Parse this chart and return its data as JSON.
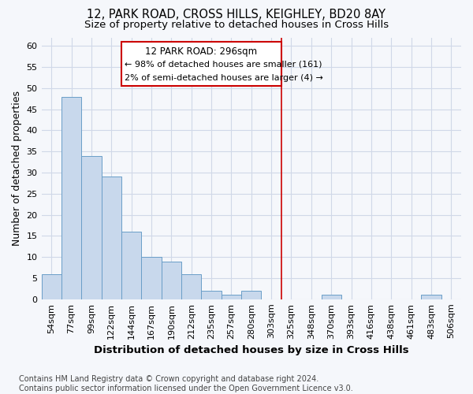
{
  "title": "12, PARK ROAD, CROSS HILLS, KEIGHLEY, BD20 8AY",
  "subtitle": "Size of property relative to detached houses in Cross Hills",
  "xlabel": "Distribution of detached houses by size in Cross Hills",
  "ylabel": "Number of detached properties",
  "footer_line1": "Contains HM Land Registry data © Crown copyright and database right 2024.",
  "footer_line2": "Contains public sector information licensed under the Open Government Licence v3.0.",
  "bar_labels": [
    "54sqm",
    "77sqm",
    "99sqm",
    "122sqm",
    "144sqm",
    "167sqm",
    "190sqm",
    "212sqm",
    "235sqm",
    "257sqm",
    "280sqm",
    "303sqm",
    "325sqm",
    "348sqm",
    "370sqm",
    "393sqm",
    "416sqm",
    "438sqm",
    "461sqm",
    "483sqm",
    "506sqm"
  ],
  "bar_values": [
    6,
    48,
    34,
    29,
    16,
    10,
    9,
    6,
    2,
    1,
    2,
    0,
    0,
    0,
    1,
    0,
    0,
    0,
    0,
    1,
    0
  ],
  "bar_color": "#c8d8ec",
  "bar_edge_color": "#6a9ec8",
  "ylim": [
    0,
    62
  ],
  "yticks": [
    0,
    5,
    10,
    15,
    20,
    25,
    30,
    35,
    40,
    45,
    50,
    55,
    60
  ],
  "vline_x": 11.5,
  "vline_color": "#cc0000",
  "annotation_title": "12 PARK ROAD: 296sqm",
  "annotation_line1": "← 98% of detached houses are smaller (161)",
  "annotation_line2": "2% of semi-detached houses are larger (4) →",
  "annotation_box_color": "#cc0000",
  "background_color": "#f5f7fb",
  "grid_color": "#d0d8e8",
  "title_fontsize": 10.5,
  "subtitle_fontsize": 9.5,
  "axis_label_fontsize": 9,
  "tick_fontsize": 8,
  "footer_fontsize": 7
}
